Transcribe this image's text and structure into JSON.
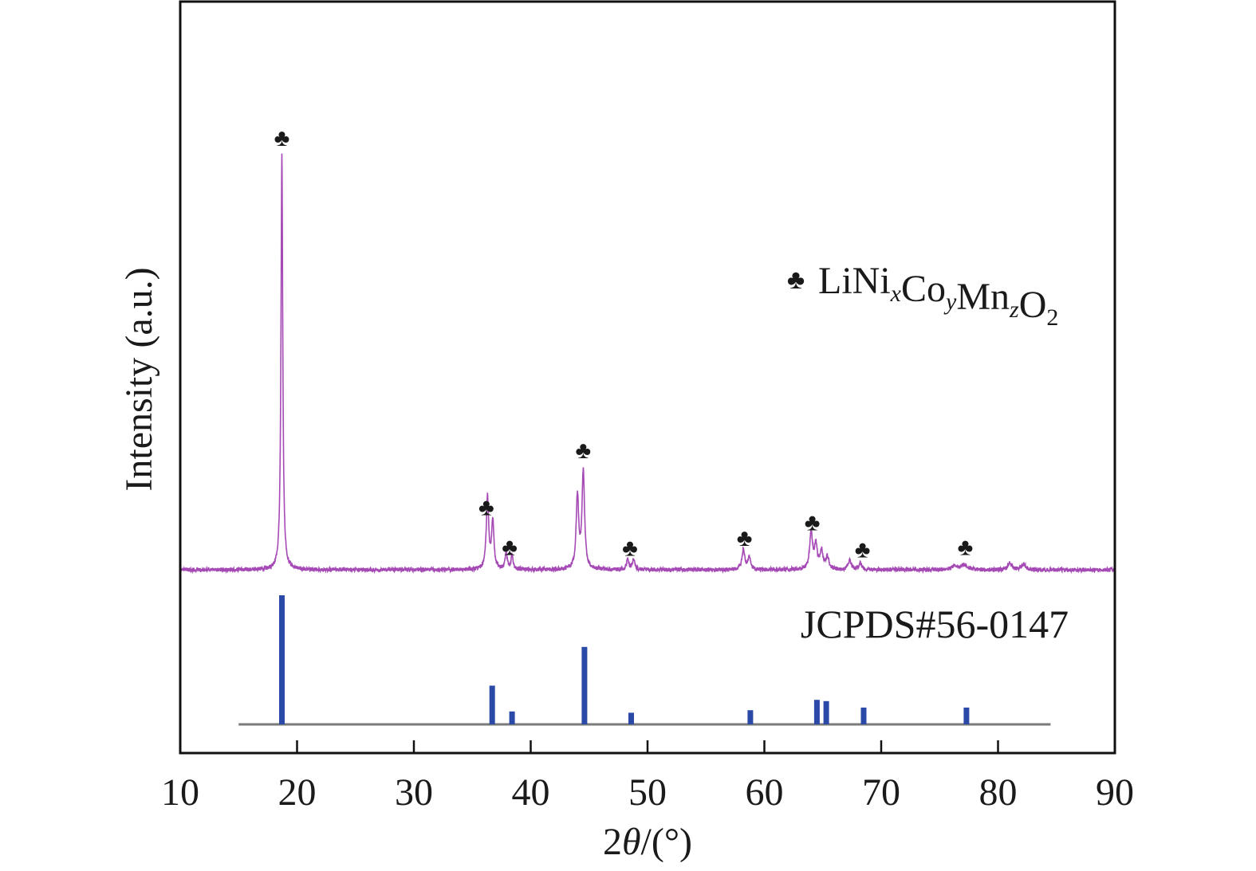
{
  "chart_data": {
    "type": "line",
    "xlabel_parts": [
      "2",
      "θ",
      "/(°)"
    ],
    "ylabel": "Intensity (a.u.)",
    "xlim": [
      10,
      90
    ],
    "xticks": [
      "10",
      "20",
      "30",
      "40",
      "50",
      "60",
      "70",
      "80",
      "90"
    ],
    "legend": {
      "marker": "♣",
      "label_parts": [
        {
          "t": "LiNi",
          "s": "normal"
        },
        {
          "t": "x",
          "s": "sub-italic"
        },
        {
          "t": "Co",
          "s": "normal"
        },
        {
          "t": "y",
          "s": "sub-italic"
        },
        {
          "t": "Mn",
          "s": "normal"
        },
        {
          "t": "z",
          "s": "sub-italic"
        },
        {
          "t": "O",
          "s": "normal"
        },
        {
          "t": "2",
          "s": "sub"
        }
      ]
    },
    "reference_label": "JCPDS#56-0147",
    "marker_symbol": "♣",
    "xrd_pattern": {
      "color": "#a54ab5",
      "baseline": 0.0,
      "peaks": [
        {
          "x": 18.7,
          "h": 100,
          "w": 0.09
        },
        {
          "x": 36.3,
          "h": 17.5,
          "w": 0.12
        },
        {
          "x": 36.75,
          "h": 11.5,
          "w": 0.12
        },
        {
          "x": 37.9,
          "h": 4.2,
          "w": 0.1
        },
        {
          "x": 38.4,
          "h": 3.5,
          "w": 0.1
        },
        {
          "x": 44.0,
          "h": 17.5,
          "w": 0.13
        },
        {
          "x": 44.5,
          "h": 23.5,
          "w": 0.13
        },
        {
          "x": 48.3,
          "h": 2.4,
          "w": 0.12
        },
        {
          "x": 48.8,
          "h": 2.5,
          "w": 0.12
        },
        {
          "x": 58.2,
          "h": 4.8,
          "w": 0.14
        },
        {
          "x": 58.7,
          "h": 2.8,
          "w": 0.14
        },
        {
          "x": 64.0,
          "h": 8.5,
          "w": 0.15
        },
        {
          "x": 64.4,
          "h": 5.5,
          "w": 0.15
        },
        {
          "x": 64.9,
          "h": 4.2,
          "w": 0.15
        },
        {
          "x": 65.4,
          "h": 3.0,
          "w": 0.15
        },
        {
          "x": 67.3,
          "h": 2.2,
          "w": 0.15
        },
        {
          "x": 68.2,
          "h": 1.6,
          "w": 0.15
        },
        {
          "x": 76.3,
          "h": 1.1,
          "w": 0.25
        },
        {
          "x": 77.1,
          "h": 1.3,
          "w": 0.25
        },
        {
          "x": 81.0,
          "h": 1.6,
          "w": 0.2
        },
        {
          "x": 82.2,
          "h": 1.4,
          "w": 0.2
        }
      ]
    },
    "peak_markers_x": [
      18.7,
      36.2,
      38.2,
      44.5,
      48.5,
      58.3,
      64.1,
      68.4,
      77.2
    ],
    "reference_lines": {
      "color": "#2b4aa8",
      "x": [
        18.7,
        36.7,
        38.4,
        44.6,
        48.6,
        58.8,
        64.5,
        65.3,
        68.5,
        77.3
      ],
      "intensity": [
        100,
        30,
        10,
        60,
        9,
        11,
        19,
        18,
        13,
        13
      ],
      "xrange": [
        15,
        84.5
      ]
    }
  }
}
